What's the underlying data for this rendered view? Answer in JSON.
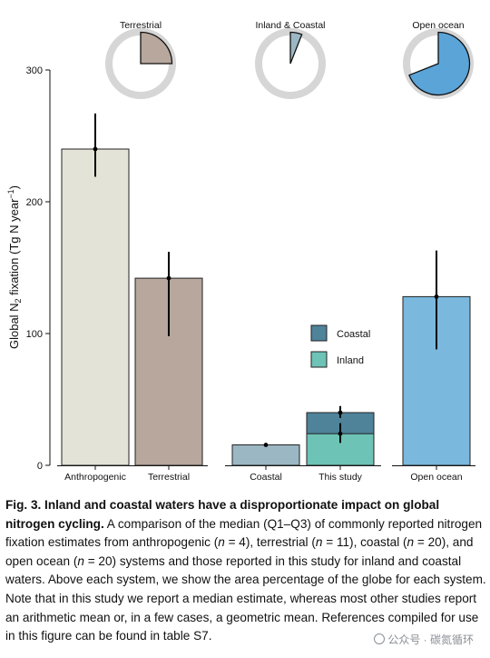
{
  "chart_data": {
    "type": "bar",
    "ylabel_main": "Global N",
    "ylabel_sub": "2",
    "ylabel_rest": " fixation (Tg N year",
    "ylabel_sup": "−1",
    "ylabel_close": ")",
    "ylim": [
      0,
      300
    ],
    "yticks": [
      0,
      100,
      200,
      300
    ],
    "groups": [
      {
        "name": "land",
        "bars": [
          {
            "label": "Anthropogenic",
            "value": 240,
            "q1": 219,
            "q3": 267,
            "color": "#e4e3d8"
          },
          {
            "label": "Terrestrial",
            "value": 142,
            "q1": 98,
            "q3": 162,
            "color": "#b7a79d"
          }
        ],
        "pie": {
          "title": "Terrestrial",
          "percent": 25,
          "color": "#b7a79d"
        }
      },
      {
        "name": "inland-coastal",
        "bars": [
          {
            "label": "Coastal",
            "value": 15.5,
            "q1": 15,
            "q3": 16,
            "color": "#9cb7c4"
          },
          {
            "label": "This study",
            "stacked": true,
            "segments": [
              {
                "name": "Inland",
                "value": 24,
                "q1": 17,
                "q3": 32,
                "color": "#6dc3b5"
              },
              {
                "name": "Coastal",
                "value": 40,
                "q1": 36,
                "q3": 45,
                "color": "#4f839a"
              }
            ]
          }
        ],
        "pie": {
          "title": "Inland & Coastal",
          "percent": 6,
          "color": "#9cb7c4"
        }
      },
      {
        "name": "ocean",
        "bars": [
          {
            "label": "Open ocean",
            "value": 128,
            "q1": 88,
            "q3": 163,
            "color": "#7ab8de"
          }
        ],
        "pie": {
          "title": "Open ocean",
          "percent": 69,
          "color": "#5aa4d8"
        }
      }
    ],
    "legend": [
      {
        "label": "Coastal",
        "color": "#4f839a"
      },
      {
        "label": "Inland",
        "color": "#6dc3b5"
      }
    ],
    "legend_placement": "center-right",
    "grid": false
  },
  "caption": {
    "title": "Fig. 3. Inland and coastal waters have a disproportionate impact on global nitrogen cycling.",
    "body_1": " A comparison of the median (Q1–Q3) of commonly reported nitrogen fixation estimates from anthropogenic (",
    "n": "n",
    "body_2": " = 4), terrestrial (",
    "body_3": " = 11), coastal (",
    "body_4": " = 20), and open ocean (",
    "body_5": " = 20) systems and those reported in this study for inland and coastal waters. Above each system, we show the area percentage of the globe for each system. Note that in this study we report a median estimate, whereas most other studies report an arithmetic mean or, in a few cases, a geometric mean. References compiled for use in this figure can be found in table S7."
  },
  "watermark": "公众号 · 碳氮循环"
}
